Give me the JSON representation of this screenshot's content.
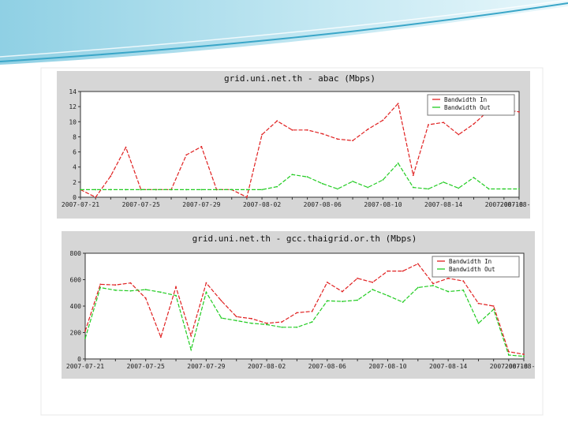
{
  "theme": {
    "accent": "#3aa6c8",
    "panel_bg": "#d6d6d6",
    "plot_bg": "#ffffff",
    "in_color": "#e02020",
    "out_color": "#22cc22"
  },
  "chart_data": [
    {
      "type": "line",
      "title": "grid.uni.net.th - abac (Mbps)",
      "x": [
        "2007-07-21",
        "2007-07-22",
        "2007-07-23",
        "2007-07-24",
        "2007-07-25",
        "2007-07-26",
        "2007-07-27",
        "2007-07-28",
        "2007-07-29",
        "2007-07-30",
        "2007-07-31",
        "2007-08-01",
        "2007-08-02",
        "2007-08-03",
        "2007-08-04",
        "2007-08-05",
        "2007-08-06",
        "2007-08-07",
        "2007-08-08",
        "2007-08-09",
        "2007-08-10",
        "2007-08-11",
        "2007-08-12",
        "2007-08-13",
        "2007-08-14",
        "2007-08-15",
        "2007-08-16",
        "2007-08-17",
        "2007-08-18",
        "2007-08-19"
      ],
      "xticks": [
        "2007-07-21",
        "2007-07-25",
        "2007-07-29",
        "2007-08-02",
        "2007-08-06",
        "2007-08-10",
        "2007-08-14",
        "2007-08-18"
      ],
      "ylim": [
        0,
        14
      ],
      "yticks": [
        0,
        2,
        4,
        6,
        8,
        10,
        12,
        14
      ],
      "grid": false,
      "legend_position": "top-right",
      "series": [
        {
          "name": "Bandwidth In",
          "color": "#e02020",
          "values": [
            1,
            0,
            2.8,
            6.6,
            1,
            1,
            1,
            5.6,
            6.7,
            1,
            1,
            0,
            8.3,
            10.1,
            8.9,
            8.9,
            8.4,
            7.7,
            7.5,
            9,
            10.2,
            12.4,
            2.9,
            9.6,
            9.9,
            8.3,
            9.7,
            11.5,
            11.6,
            11.3
          ]
        },
        {
          "name": "Bandwidth Out",
          "color": "#22cc22",
          "values": [
            1,
            1,
            1,
            1,
            1,
            1,
            1,
            1,
            1,
            1,
            1,
            1,
            1,
            1.4,
            3,
            2.7,
            1.8,
            1.1,
            2.1,
            1.3,
            2.3,
            4.5,
            1.3,
            1.1,
            2,
            1.2,
            2.6,
            1.1,
            1.1,
            1.1
          ]
        }
      ]
    },
    {
      "type": "line",
      "title": "grid.uni.net.th - gcc.thaigrid.or.th (Mbps)",
      "x": [
        "2007-07-21",
        "2007-07-22",
        "2007-07-23",
        "2007-07-24",
        "2007-07-25",
        "2007-07-26",
        "2007-07-27",
        "2007-07-28",
        "2007-07-29",
        "2007-07-30",
        "2007-07-31",
        "2007-08-01",
        "2007-08-02",
        "2007-08-03",
        "2007-08-04",
        "2007-08-05",
        "2007-08-06",
        "2007-08-07",
        "2007-08-08",
        "2007-08-09",
        "2007-08-10",
        "2007-08-11",
        "2007-08-12",
        "2007-08-13",
        "2007-08-14",
        "2007-08-15",
        "2007-08-16",
        "2007-08-17",
        "2007-08-18",
        "2007-08-19"
      ],
      "xticks": [
        "2007-07-21",
        "2007-07-25",
        "2007-07-29",
        "2007-08-02",
        "2007-08-06",
        "2007-08-10",
        "2007-08-14",
        "2007-08-18"
      ],
      "ylim": [
        0,
        800
      ],
      "yticks": [
        0,
        200,
        400,
        600,
        800
      ],
      "grid": false,
      "legend_position": "top-right",
      "series": [
        {
          "name": "Bandwidth In",
          "color": "#e02020",
          "values": [
            210,
            565,
            560,
            575,
            460,
            165,
            545,
            175,
            575,
            440,
            320,
            305,
            270,
            280,
            350,
            360,
            580,
            510,
            610,
            580,
            665,
            665,
            720,
            570,
            610,
            590,
            420,
            400,
            55,
            35
          ]
        },
        {
          "name": "Bandwidth Out",
          "color": "#22cc22",
          "values": [
            155,
            540,
            520,
            515,
            525,
            505,
            480,
            70,
            505,
            310,
            290,
            270,
            260,
            240,
            240,
            280,
            440,
            435,
            445,
            525,
            480,
            430,
            540,
            555,
            510,
            520,
            270,
            375,
            30,
            20
          ]
        }
      ]
    }
  ]
}
